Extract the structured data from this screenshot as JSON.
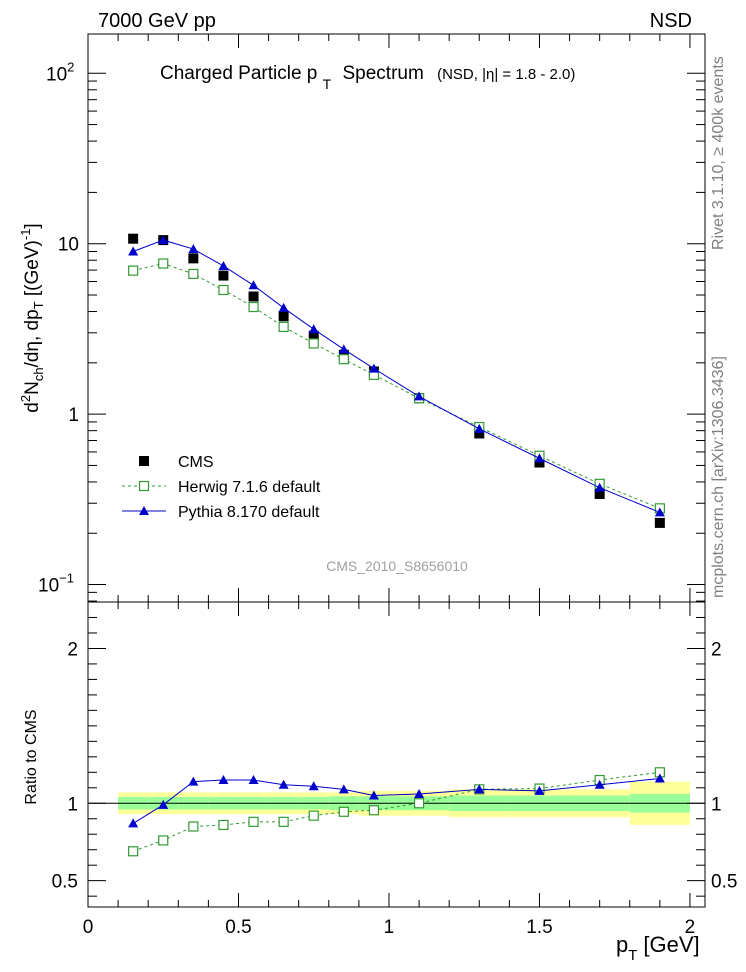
{
  "header": {
    "left": "7000 GeV pp",
    "right": "NSD"
  },
  "side_labels": {
    "right_top": "Rivet 3.1.10, ≥ 400k events",
    "right_bottom": "mcplots.cern.ch [arXiv:1306.3436]"
  },
  "watermark": "CMS_2010_S8656010",
  "chart_data": [
    {
      "type": "scatter",
      "panel": "main",
      "title_main": "Charged Particle p",
      "title_sub": "T",
      "title_tail": "Spectrum",
      "title_extra": "(NSD, |η| = 1.8 - 2.0)",
      "ylabel": "d²Nₓₕ/dη, dpₜ [(GeV)⁻¹]",
      "ylabel_parts": {
        "a": "d",
        "sup2": "2",
        "b": "N",
        "sub_ch": "ch",
        "c": "/dη, dp",
        "sub_T": "T",
        "d": " [(GeV)",
        "sup_m1": "-1",
        "e": "]"
      },
      "yscale": "log",
      "ylim": [
        0.079,
        170
      ],
      "xlim": [
        0,
        2.05
      ],
      "yticks": [
        {
          "value": 0.1,
          "base": "10",
          "exp": "−1"
        },
        {
          "value": 1,
          "base": "1",
          "exp": ""
        },
        {
          "value": 10,
          "base": "10",
          "exp": ""
        },
        {
          "value": 100,
          "base": "10",
          "exp": "2"
        }
      ],
      "series": [
        {
          "name": "CMS",
          "style": "data",
          "color": "#000000",
          "x": [
            0.15,
            0.25,
            0.35,
            0.45,
            0.55,
            0.65,
            0.75,
            0.85,
            0.95,
            1.1,
            1.3,
            1.5,
            1.7,
            1.9
          ],
          "y": [
            10.7,
            10.5,
            8.2,
            6.5,
            4.9,
            3.75,
            2.88,
            2.23,
            1.78,
            1.24,
            0.77,
            0.52,
            0.34,
            0.23
          ]
        },
        {
          "name": "Herwig 7.1.6 default",
          "style": "open-square-dashed",
          "color": "#339933",
          "x": [
            0.15,
            0.25,
            0.35,
            0.45,
            0.55,
            0.65,
            0.75,
            0.85,
            0.95,
            1.1,
            1.3,
            1.5,
            1.7,
            1.9
          ],
          "y": [
            6.95,
            7.65,
            6.65,
            5.35,
            4.25,
            3.25,
            2.6,
            2.1,
            1.7,
            1.24,
            0.84,
            0.57,
            0.39,
            0.28
          ]
        },
        {
          "name": "Pythia 8.170 default",
          "style": "triangle-solid",
          "color": "#0000cc",
          "x": [
            0.15,
            0.25,
            0.35,
            0.45,
            0.55,
            0.65,
            0.75,
            0.85,
            0.95,
            1.1,
            1.3,
            1.5,
            1.7,
            1.9
          ],
          "y": [
            9.0,
            10.5,
            9.3,
            7.4,
            5.7,
            4.2,
            3.15,
            2.4,
            1.85,
            1.27,
            0.82,
            0.55,
            0.37,
            0.265
          ]
        }
      ],
      "legend_position": "lower-left"
    },
    {
      "type": "line",
      "panel": "ratio",
      "ylabel": "Ratio to CMS",
      "xlabel": "p",
      "xlabel_sub": "T",
      "xlabel_unit": "[GeV]",
      "ylim": [
        0.33,
        2.3
      ],
      "xlim": [
        0,
        2.05
      ],
      "yticks": [
        0.5,
        1,
        2
      ],
      "ytick_labels": [
        "0.5",
        "1",
        "2"
      ],
      "xticks": [
        0,
        0.5,
        1,
        1.5,
        2
      ],
      "xtick_labels": [
        "0",
        "0.5",
        "1",
        "1.5",
        "2"
      ],
      "bands": {
        "x_edges": [
          0.1,
          0.2,
          0.3,
          0.4,
          0.5,
          0.6,
          0.7,
          0.8,
          0.9,
          1.0,
          1.2,
          1.4,
          1.6,
          1.8,
          2.0
        ],
        "yellow_half": [
          0.07,
          0.07,
          0.07,
          0.07,
          0.07,
          0.07,
          0.07,
          0.07,
          0.08,
          0.08,
          0.09,
          0.09,
          0.09,
          0.14
        ],
        "green_half": [
          0.04,
          0.04,
          0.04,
          0.04,
          0.04,
          0.04,
          0.04,
          0.045,
          0.045,
          0.045,
          0.05,
          0.05,
          0.05,
          0.06
        ],
        "yellow_color": "#ffff99",
        "green_color": "#99ff99"
      },
      "series": [
        {
          "name": "Herwig 7.1.6 default",
          "style": "open-square-dashed",
          "color": "#339933",
          "x": [
            0.15,
            0.25,
            0.35,
            0.45,
            0.55,
            0.65,
            0.75,
            0.85,
            0.95,
            1.1,
            1.3,
            1.5,
            1.7,
            1.9
          ],
          "y": [
            0.69,
            0.76,
            0.85,
            0.86,
            0.88,
            0.88,
            0.92,
            0.945,
            0.955,
            1.0,
            1.09,
            1.095,
            1.15,
            1.2
          ]
        },
        {
          "name": "Pythia 8.170 default",
          "style": "triangle-solid",
          "color": "#0000cc",
          "x": [
            0.15,
            0.25,
            0.35,
            0.45,
            0.55,
            0.65,
            0.75,
            0.85,
            0.95,
            1.1,
            1.3,
            1.5,
            1.7,
            1.9
          ],
          "y": [
            0.87,
            0.99,
            1.14,
            1.15,
            1.15,
            1.12,
            1.11,
            1.09,
            1.05,
            1.06,
            1.09,
            1.08,
            1.12,
            1.16
          ]
        }
      ]
    }
  ]
}
